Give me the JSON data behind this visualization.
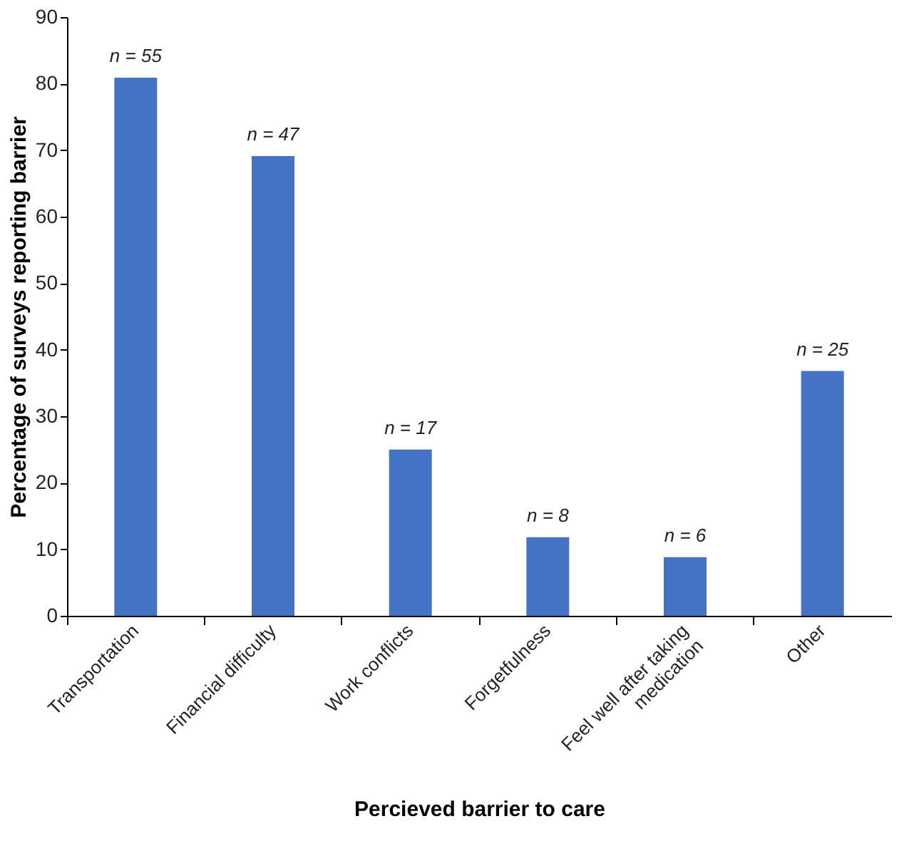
{
  "chart_data": {
    "type": "bar",
    "xlabel": "Percieved barrier to care",
    "ylabel": "Percentage of surveys reporting barrier",
    "categories": [
      "Transportation",
      "Financial difficulty",
      "Work conflicts",
      "Forgetfulness",
      "Feel well after taking medication",
      "Other"
    ],
    "values": [
      80.9,
      69.1,
      25,
      11.8,
      8.8,
      36.8
    ],
    "annotations": [
      {
        "text": "n = 55",
        "x": "Transportation",
        "y": 80.9
      },
      {
        "text": "n = 47",
        "x": "Financial difficulty",
        "y": 69.1
      },
      {
        "text": "n = 17",
        "x": "Work conflicts",
        "y": 25
      },
      {
        "text": "n = 8",
        "x": "Forgetfulness",
        "y": 11.8
      },
      {
        "text": "n = 6",
        "x": "Feel well after taking medication",
        "y": 8.8
      },
      {
        "text": "n = 25",
        "x": "Other",
        "y": 36.8
      }
    ],
    "color": "#4472c4",
    "ylim": [
      0,
      90
    ],
    "yticks": [
      0,
      10,
      20,
      30,
      40,
      50,
      60,
      70,
      80,
      90
    ],
    "grid": false
  }
}
